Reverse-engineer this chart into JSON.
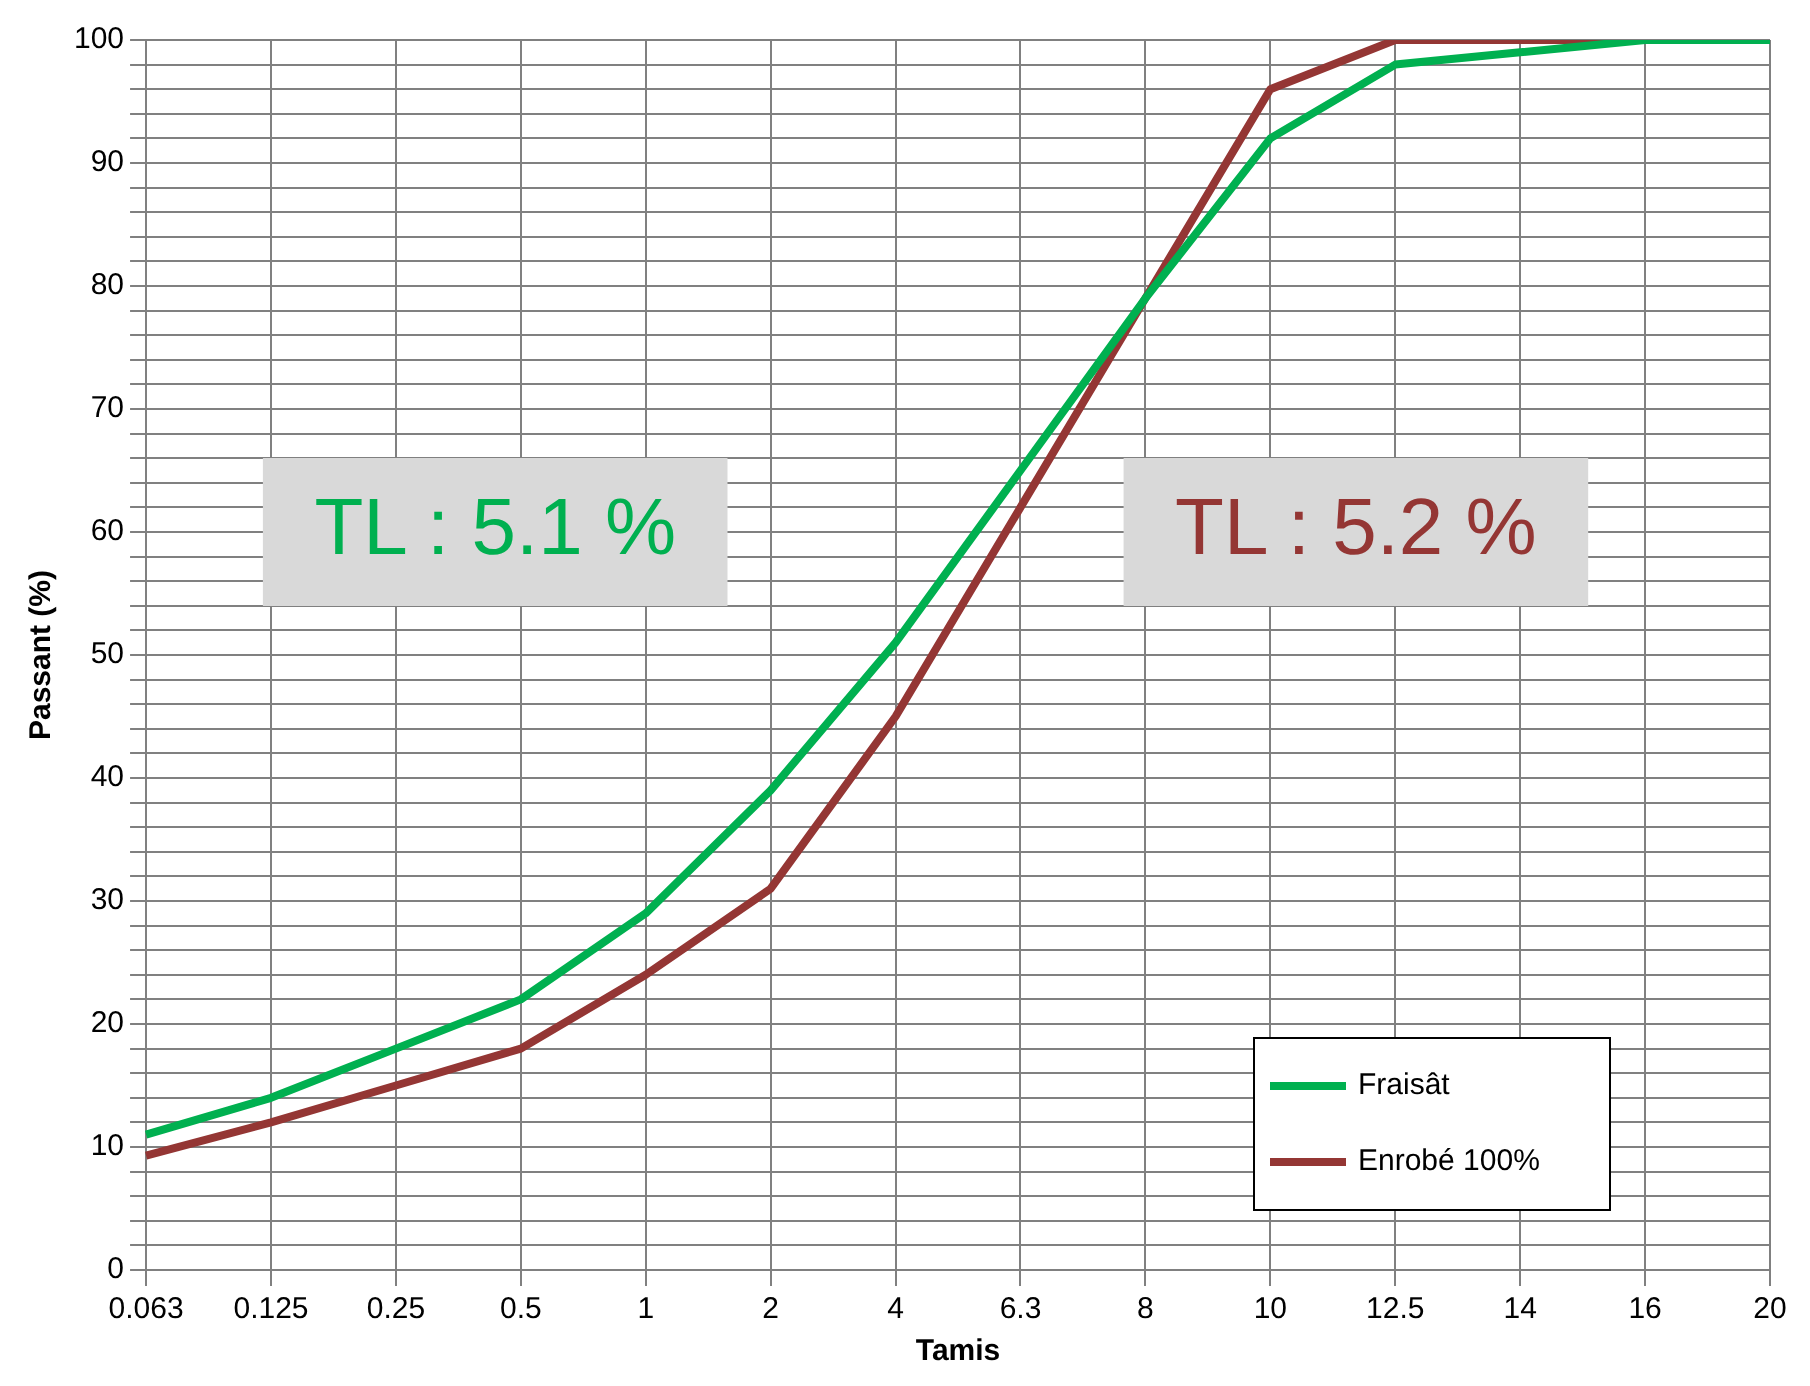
{
  "chart_data": {
    "type": "line",
    "xlabel": "Tamis",
    "ylabel": "Passant (%)",
    "categories": [
      "0.063",
      "0.125",
      "0.25",
      "0.5",
      "1",
      "2",
      "4",
      "6.3",
      "8",
      "10",
      "12.5",
      "14",
      "16",
      "20"
    ],
    "series": [
      {
        "name": "Fraisât",
        "color": "#00b050",
        "values": [
          11,
          14,
          18,
          22,
          29,
          39,
          51,
          65,
          79,
          92,
          98,
          99,
          100,
          100
        ]
      },
      {
        "name": "Enrobé 100%",
        "color": "#943634",
        "values": [
          9.3,
          12,
          15,
          18,
          24,
          31,
          45,
          62,
          79,
          96,
          100,
          100,
          100,
          100
        ]
      }
    ],
    "ylim": [
      0,
      100
    ],
    "yticks": [
      0,
      {
        "value": 2,
        "label": null
      },
      {
        "value": 4,
        "label": null
      },
      {
        "value": 6,
        "label": null
      },
      {
        "value": 8,
        "label": null
      },
      10,
      {
        "value": 12,
        "label": null
      },
      {
        "value": 14,
        "label": null
      },
      {
        "value": 16,
        "label": null
      },
      {
        "value": 18,
        "label": null
      },
      20,
      {
        "value": 22,
        "label": null
      },
      {
        "value": 24,
        "label": null
      },
      {
        "value": 26,
        "label": null
      },
      {
        "value": 28,
        "label": null
      },
      30,
      {
        "value": 32,
        "label": null
      },
      {
        "value": 34,
        "label": null
      },
      {
        "value": 36,
        "label": null
      },
      {
        "value": 38,
        "label": null
      },
      40,
      {
        "value": 42,
        "label": null
      },
      {
        "value": 44,
        "label": null
      },
      {
        "value": 46,
        "label": null
      },
      {
        "value": 48,
        "label": null
      },
      50,
      {
        "value": 52,
        "label": null
      },
      {
        "value": 54,
        "label": null
      },
      {
        "value": 56,
        "label": null
      },
      {
        "value": 58,
        "label": null
      },
      60,
      {
        "value": 62,
        "label": null
      },
      {
        "value": 64,
        "label": null
      },
      {
        "value": 66,
        "label": null
      },
      {
        "value": 68,
        "label": null
      },
      70,
      {
        "value": 72,
        "label": null
      },
      {
        "value": 74,
        "label": null
      },
      {
        "value": 76,
        "label": null
      },
      {
        "value": 78,
        "label": null
      },
      80,
      {
        "value": 82,
        "label": null
      },
      {
        "value": 84,
        "label": null
      },
      {
        "value": 86,
        "label": null
      },
      {
        "value": 88,
        "label": null
      },
      90,
      {
        "value": 92,
        "label": null
      },
      {
        "value": 94,
        "label": null
      },
      {
        "value": 96,
        "label": null
      },
      {
        "value": 98,
        "label": null
      },
      100
    ],
    "annotations": [
      "TL : 5.1 %",
      "TL : 5.2 %"
    ],
    "grid": true,
    "legend": "bottom right",
    "marker": "none",
    "line_style": "solid"
  }
}
